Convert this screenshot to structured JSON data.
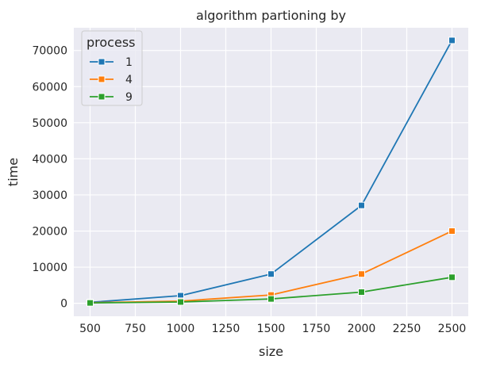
{
  "chart_data": {
    "type": "line",
    "title": "algorithm partioning by",
    "xlabel": "size",
    "ylabel": "time",
    "x": [
      500,
      1000,
      1500,
      2000,
      2500
    ],
    "xlim": [
      410,
      2590
    ],
    "ylim": [
      -3600,
      76300
    ],
    "xticks": [
      500,
      750,
      1000,
      1250,
      1500,
      1750,
      2000,
      2250,
      2500
    ],
    "yticks": [
      0,
      10000,
      20000,
      30000,
      40000,
      50000,
      60000,
      70000
    ],
    "grid": true,
    "legend": {
      "title": "process",
      "placement": "top-left"
    },
    "series": [
      {
        "name": "1",
        "color": "#1f77b4",
        "marker": "square",
        "values": [
          250,
          2100,
          8100,
          27100,
          72800
        ]
      },
      {
        "name": "4",
        "color": "#ff7f0e",
        "marker": "square",
        "values": [
          150,
          600,
          2300,
          8100,
          20000
        ]
      },
      {
        "name": "9",
        "color": "#2ca02c",
        "marker": "square",
        "values": [
          100,
          350,
          1200,
          3100,
          7200
        ]
      }
    ],
    "background_color": "#eaeaf2",
    "grid_color": "#ffffff"
  }
}
